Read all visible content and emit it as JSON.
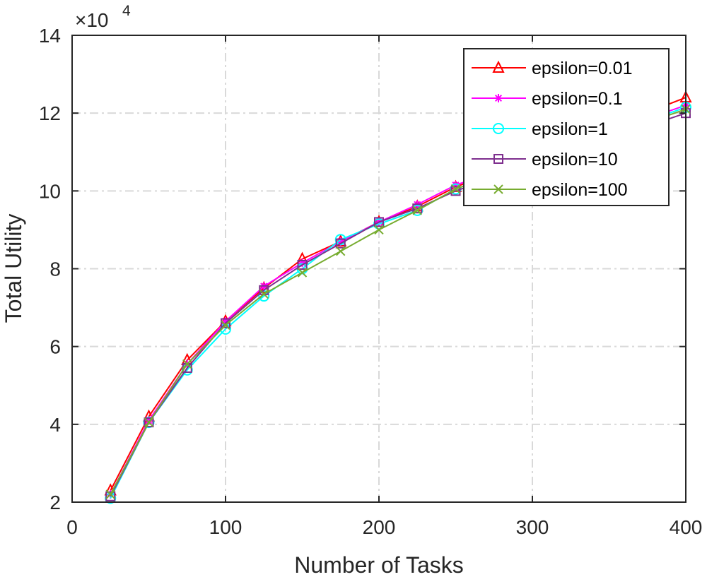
{
  "chart_data": {
    "type": "line",
    "xlabel": "Number of Tasks",
    "ylabel": "Total Utility",
    "y_multiplier": {
      "base": "×10",
      "exponent": "4"
    },
    "xlim": [
      0,
      400
    ],
    "ylim": [
      2,
      14
    ],
    "xticks": [
      0,
      100,
      200,
      300,
      400
    ],
    "yticks": [
      2,
      4,
      6,
      8,
      10,
      12,
      14
    ],
    "grid": true,
    "legend_position": "top-right",
    "x": [
      25,
      50,
      75,
      100,
      125,
      150,
      175,
      200,
      225,
      250,
      400
    ],
    "series": [
      {
        "name": "epsilon=0.01",
        "color": "#ff0000",
        "marker": "triangle",
        "values": [
          2.3,
          4.2,
          5.65,
          6.65,
          7.5,
          8.25,
          8.7,
          9.2,
          9.6,
          10.1,
          12.4
        ]
      },
      {
        "name": "epsilon=0.1",
        "color": "#ff00ff",
        "marker": "asterisk",
        "values": [
          2.2,
          4.1,
          5.55,
          6.65,
          7.55,
          8.15,
          8.7,
          9.2,
          9.65,
          10.15,
          12.2
        ]
      },
      {
        "name": "epsilon=1",
        "color": "#00ffff",
        "marker": "circle",
        "values": [
          2.1,
          4.05,
          5.4,
          6.45,
          7.3,
          8.0,
          8.75,
          9.15,
          9.5,
          10.05,
          12.15
        ]
      },
      {
        "name": "epsilon=10",
        "color": "#7e2f8e",
        "marker": "square",
        "values": [
          2.15,
          4.05,
          5.45,
          6.6,
          7.45,
          8.1,
          8.65,
          9.2,
          9.55,
          10.0,
          12.0
        ]
      },
      {
        "name": "epsilon=100",
        "color": "#77ac30",
        "marker": "x",
        "values": [
          2.2,
          4.05,
          5.55,
          6.55,
          7.35,
          7.9,
          8.45,
          9.0,
          9.5,
          10.05,
          12.1
        ]
      }
    ]
  }
}
